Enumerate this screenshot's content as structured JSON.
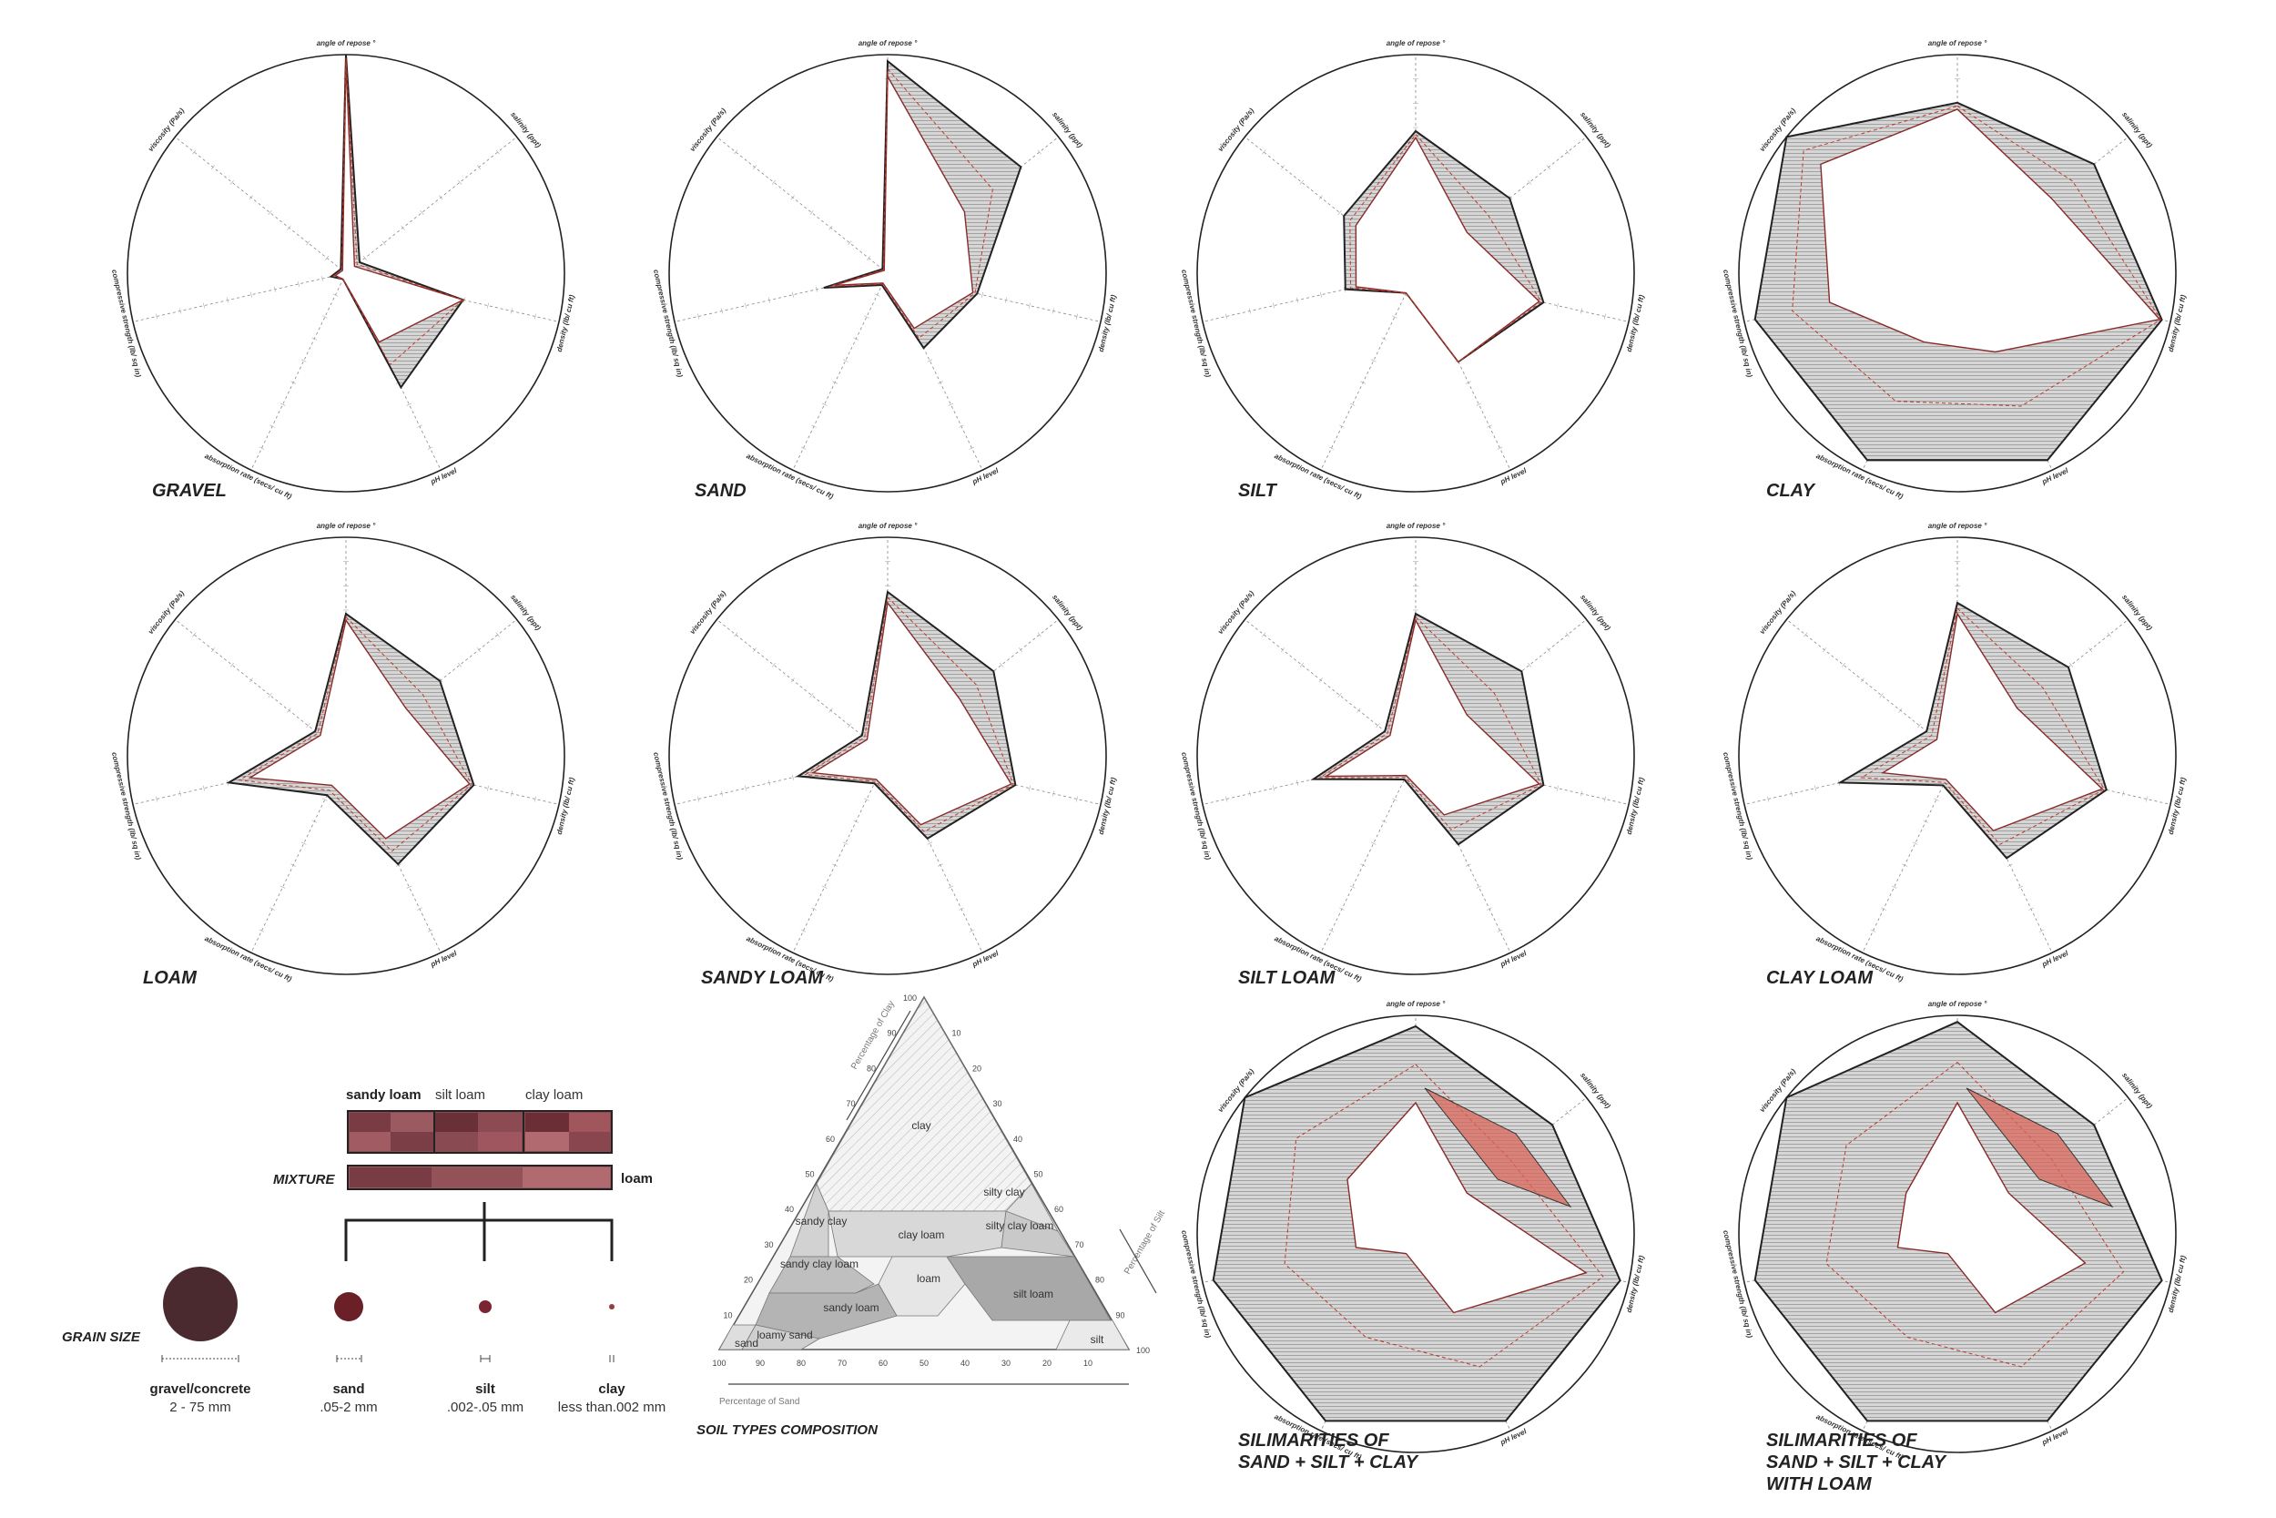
{
  "chart_data": {
    "type": "radar",
    "axes": [
      "angle of repose °",
      "salinity (ppt)",
      "density (lb/ cu ft)",
      "pH level",
      "absorption rate (secs/ cu ft)",
      "compressive strength (lb/ sq in)",
      "viscosity (Pa/s)"
    ],
    "charts": [
      {
        "title": "GRAVEL",
        "inner": [
          0.97,
          0.05,
          0.55,
          0.35,
          0.03,
          0.05,
          0.02
        ],
        "outer": [
          1.0,
          0.08,
          0.55,
          0.58,
          0.03,
          0.07,
          0.03
        ]
      },
      {
        "title": "SAND",
        "inner": [
          0.9,
          0.45,
          0.4,
          0.28,
          0.05,
          0.25,
          0.02
        ],
        "outer": [
          0.97,
          0.78,
          0.42,
          0.38,
          0.06,
          0.3,
          0.03
        ]
      },
      {
        "title": "SILT",
        "inner": [
          0.62,
          0.3,
          0.58,
          0.45,
          0.1,
          0.28,
          0.35
        ],
        "outer": [
          0.65,
          0.55,
          0.6,
          0.45,
          0.1,
          0.33,
          0.42
        ]
      },
      {
        "title": "CLAY",
        "inner": [
          0.75,
          0.55,
          0.95,
          0.4,
          0.35,
          0.6,
          0.8
        ],
        "outer": [
          0.78,
          0.8,
          0.96,
          0.95,
          0.95,
          0.95,
          1.0
        ]
      },
      {
        "title": "LOAM",
        "inner": [
          0.62,
          0.35,
          0.58,
          0.42,
          0.15,
          0.45,
          0.15
        ],
        "outer": [
          0.65,
          0.55,
          0.6,
          0.55,
          0.2,
          0.55,
          0.18
        ]
      },
      {
        "title": "SANDY LOAM",
        "inner": [
          0.7,
          0.42,
          0.58,
          0.35,
          0.12,
          0.35,
          0.12
        ],
        "outer": [
          0.75,
          0.62,
          0.6,
          0.42,
          0.14,
          0.42,
          0.15
        ]
      },
      {
        "title": "SILT LOAM",
        "inner": [
          0.62,
          0.3,
          0.58,
          0.3,
          0.1,
          0.42,
          0.15
        ],
        "outer": [
          0.65,
          0.62,
          0.6,
          0.45,
          0.12,
          0.48,
          0.18
        ]
      },
      {
        "title": "CLAY LOAM",
        "inner": [
          0.65,
          0.35,
          0.68,
          0.38,
          0.12,
          0.35,
          0.12
        ],
        "outer": [
          0.7,
          0.65,
          0.7,
          0.52,
          0.15,
          0.55,
          0.18
        ]
      },
      {
        "title": "SILIMARITIES OF\nSAND + SILT + CLAY",
        "inner": [
          0.6,
          0.3,
          0.8,
          0.4,
          0.1,
          0.28,
          0.4
        ],
        "outer": [
          0.95,
          0.8,
          0.96,
          0.95,
          0.95,
          0.95,
          1.0
        ]
      },
      {
        "title": "SILIMARITIES OF\nSAND + SILT + CLAY\nWITH LOAM",
        "inner": [
          0.6,
          0.3,
          0.6,
          0.4,
          0.1,
          0.28,
          0.3
        ],
        "outer": [
          0.97,
          0.8,
          0.96,
          0.95,
          0.95,
          0.95,
          1.0
        ]
      }
    ]
  },
  "grain": {
    "label": "GRAIN SIZE",
    "items": [
      {
        "name": "gravel/concrete",
        "range": "2 - 75 mm",
        "color": "#4a2a2e"
      },
      {
        "name": "sand",
        "range": ".05-2 mm",
        "color": "#6b1f27"
      },
      {
        "name": "silt",
        "range": ".002-.05 mm",
        "color": "#7a2530"
      },
      {
        "name": "clay",
        "range": "less than.002 mm",
        "color": "#9a3a40"
      }
    ]
  },
  "mixture": {
    "label": "MIXTURE",
    "top_labels": [
      "sandy loam",
      "silt loam",
      "clay loam"
    ],
    "result_label": "loam"
  },
  "triangle": {
    "title": "SOIL TYPES COMPOSITION",
    "axis_clay": "Percentage of Clay",
    "axis_silt": "Percentage of Silt",
    "axis_sand": "Percentage of Sand",
    "zones": [
      "clay",
      "silty clay",
      "sandy clay",
      "clay loam",
      "silty clay loam",
      "sandy clay loam",
      "loam",
      "silt loam",
      "sandy loam",
      "loamy sand",
      "sand",
      "silt"
    ],
    "ticks": [
      "100",
      "90",
      "80",
      "70",
      "60",
      "50",
      "40",
      "30",
      "20",
      "10"
    ]
  },
  "colors": {
    "accent": "#c0392b",
    "line": "#222222",
    "shade": "#bdbdbd"
  }
}
